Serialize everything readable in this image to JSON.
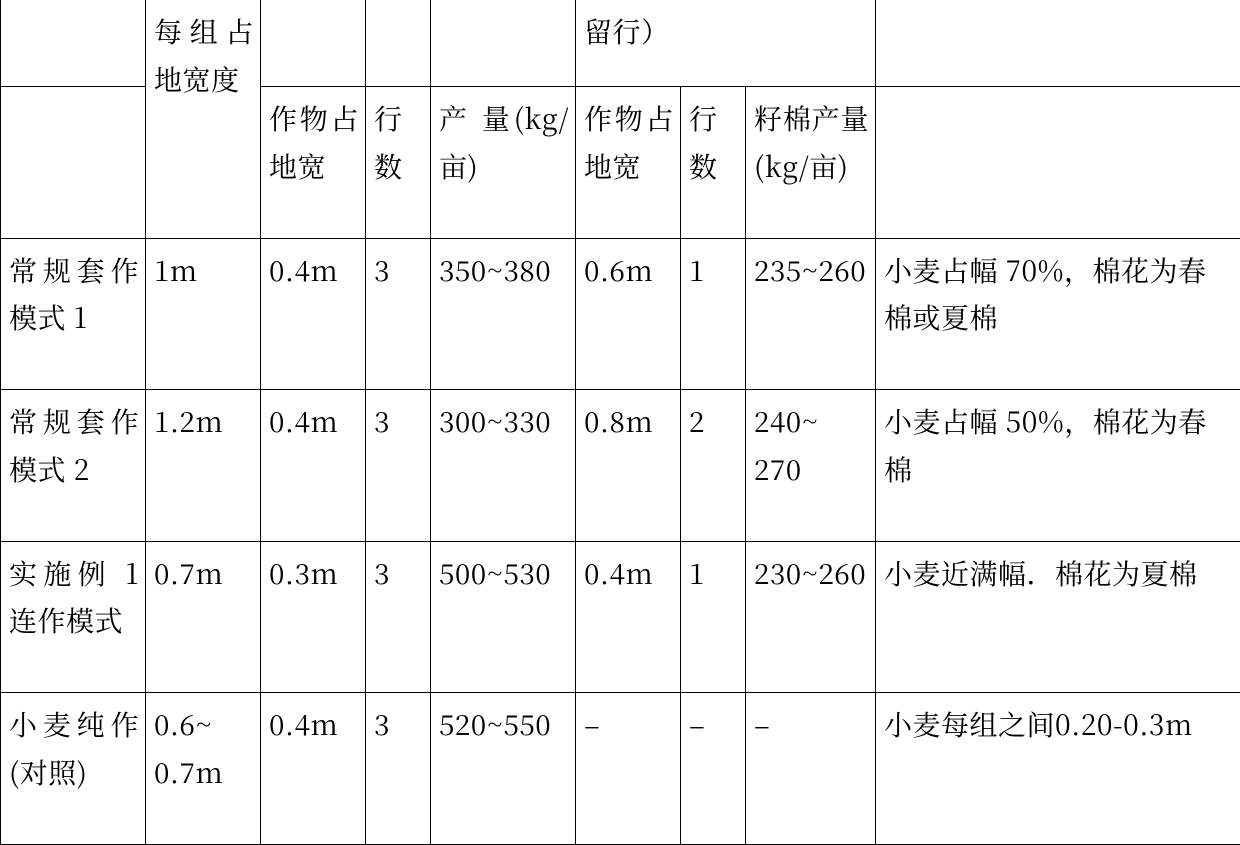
{
  "header": {
    "group_width_label": "每组占地宽度",
    "crop_width_label": "作物占地宽",
    "rows_label": "行数",
    "yield1_label": "产 量(kg/亩)",
    "crop_width2_label": "作物占地宽",
    "rows2_label": "行数",
    "yield2_label": "籽棉产量(kg/亩)",
    "reserved_label": "留行）"
  },
  "rows": [
    {
      "mode": "常规套作模式 1",
      "group_width": "1m",
      "crop1_width": "0.4m",
      "crop1_rows": "3",
      "crop1_yield": "350~380",
      "crop2_width": "0.6m",
      "crop2_rows": "1",
      "crop2_yield": "235~260",
      "note": "小麦占幅 70%，棉花为春棉或夏棉"
    },
    {
      "mode": "常规套作模式 2",
      "group_width": "1.2m",
      "crop1_width": "0.4m",
      "crop1_rows": "3",
      "crop1_yield": "300~330",
      "crop2_width": "0.8m",
      "crop2_rows": "2",
      "crop2_yield": "240~ 270",
      "note": "小麦占幅 50%，棉花为春棉"
    },
    {
      "mode": "实施例 1 连作模式",
      "group_width": "0.7m",
      "crop1_width": "0.3m",
      "crop1_rows": "3",
      "crop1_yield": "500~530",
      "crop2_width": "0.4m",
      "crop2_rows": "1",
      "crop2_yield": "230~260",
      "note": "小麦近满幅．棉花为夏棉"
    },
    {
      "mode": "小麦纯作(对照)",
      "group_width": "0.6~ 0.7m",
      "crop1_width": "0.4m",
      "crop1_rows": "3",
      "crop1_yield": "520~550",
      "crop2_width": "–",
      "crop2_rows": "–",
      "crop2_yield": "–",
      "note": "小麦每组之间0.20-0.3m"
    }
  ],
  "colwidths": [
    "145",
    "115",
    "105",
    "65",
    "145",
    "105",
    "65",
    "130",
    "365"
  ]
}
